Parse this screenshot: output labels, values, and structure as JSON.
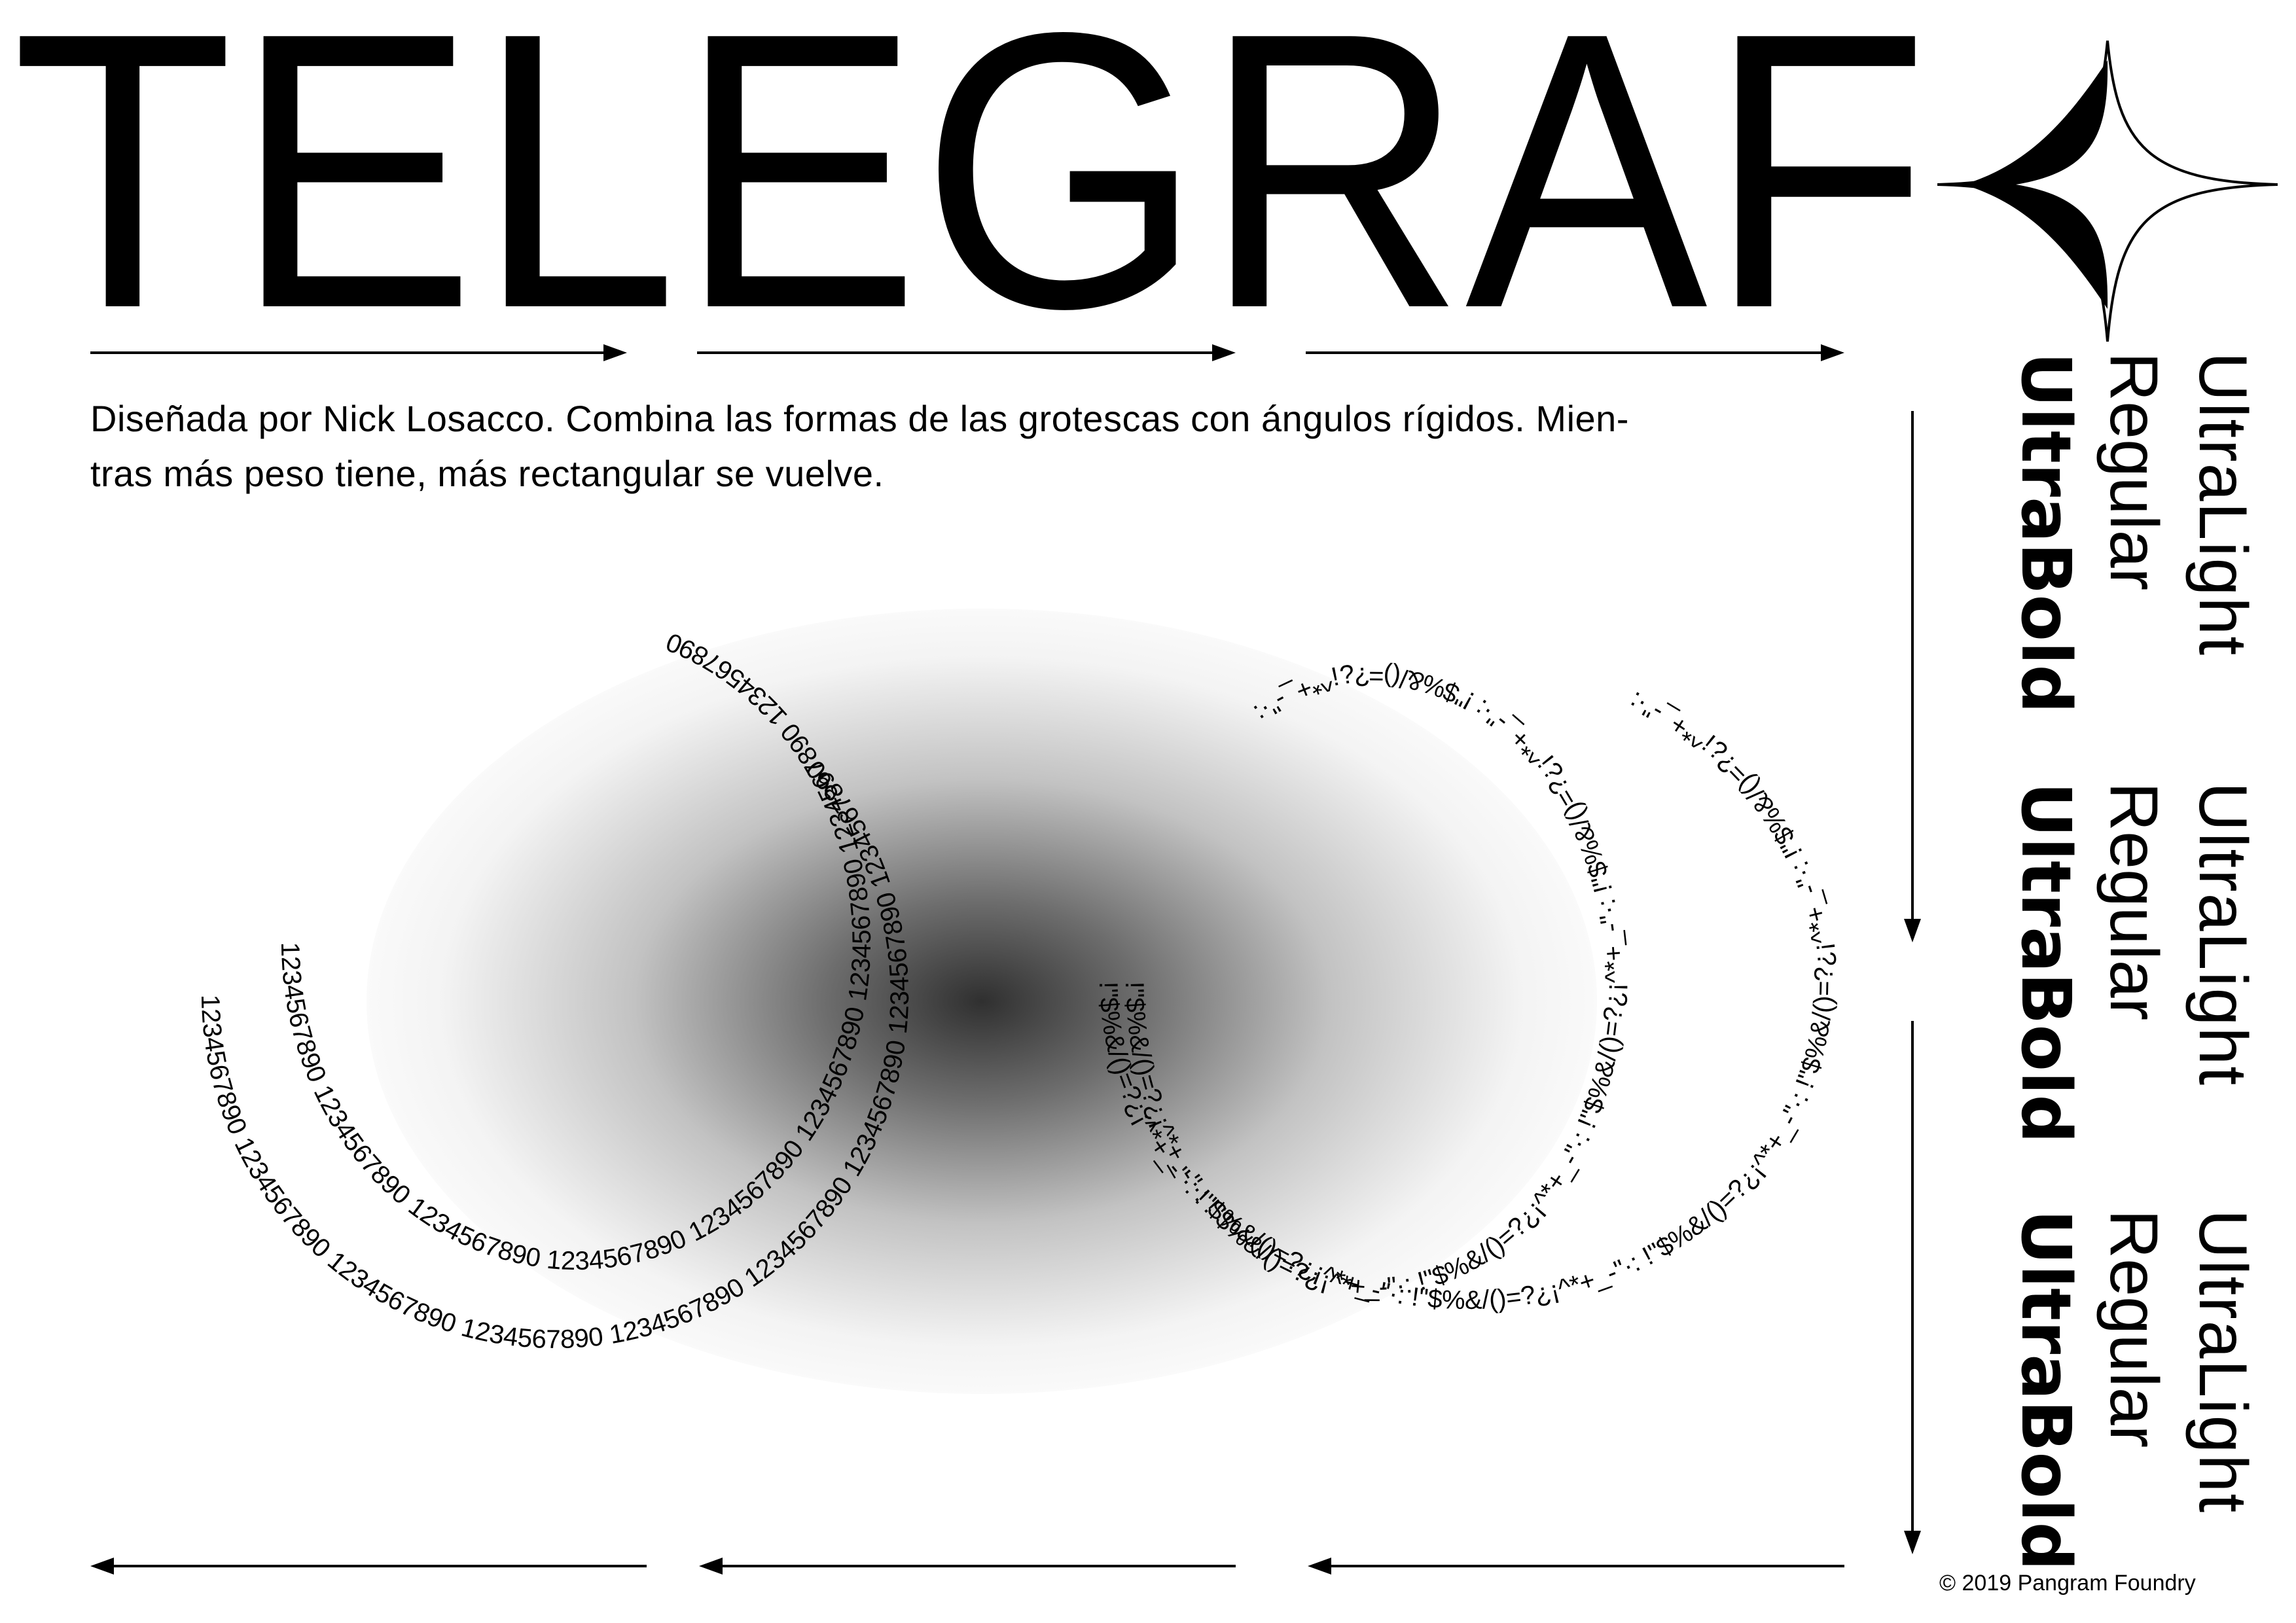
{
  "title": "TELEGRAF",
  "description": {
    "line1": "Diseñada por Nick Losacco. Combina las formas de las grotescas con ángulos rígidos. Mien-",
    "line2": "tras más peso tiene, más rectangular se vuelve."
  },
  "rings": {
    "numbers_text": "1234567890 1234567890 1234567890 1234567890 1234567890 1234567890 1234567890 1234567890 1234567890 ",
    "symbols_text": "!\"$%&/()=?¿¡^*+_-\"·: !\"$%&/()=?¿¡^*+_-\"·: !\"$%&/()=?¿¡^*+_-\"·: !\"$%&/()=?¿¡^*+_-\"·: !\"$%&/()=?¿¡^*+_-\"·: !\"$%&/()=?¿¡^*+_-\"·: "
  },
  "weights": [
    {
      "light": "UltraLight",
      "regular": "Regular",
      "bold": "UltraBold"
    },
    {
      "light": "UltraLight",
      "regular": "Regular",
      "bold": "UltraBold"
    },
    {
      "light": "UltraLight",
      "regular": "Regular",
      "bold": "UltraBold"
    }
  ],
  "copyright": "© 2019 Pangram Foundry",
  "icons": {
    "star": "four-point-star-icon",
    "arrow_right": "arrow-right-icon",
    "arrow_left": "arrow-left-icon",
    "arrow_down": "arrow-down-icon"
  },
  "colors": {
    "ink": "#000000",
    "background": "#ffffff"
  }
}
